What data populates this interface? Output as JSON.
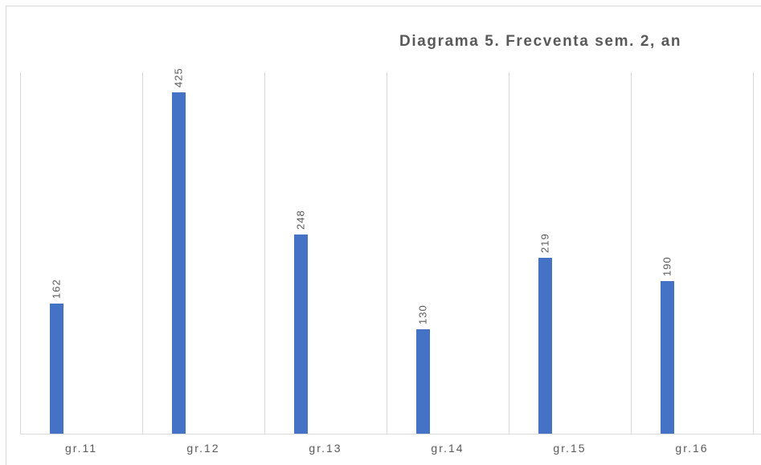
{
  "chart_data": {
    "type": "bar",
    "title": "Diagrama 5. Frecventa sem. 2, an",
    "categories": [
      "gr.11",
      "gr.12",
      "gr.13",
      "gr.14",
      "gr.15",
      "gr.16"
    ],
    "values": [
      162,
      425,
      248,
      130,
      219,
      190
    ],
    "color": "#4472c4",
    "ylim": [
      0,
      450
    ]
  }
}
